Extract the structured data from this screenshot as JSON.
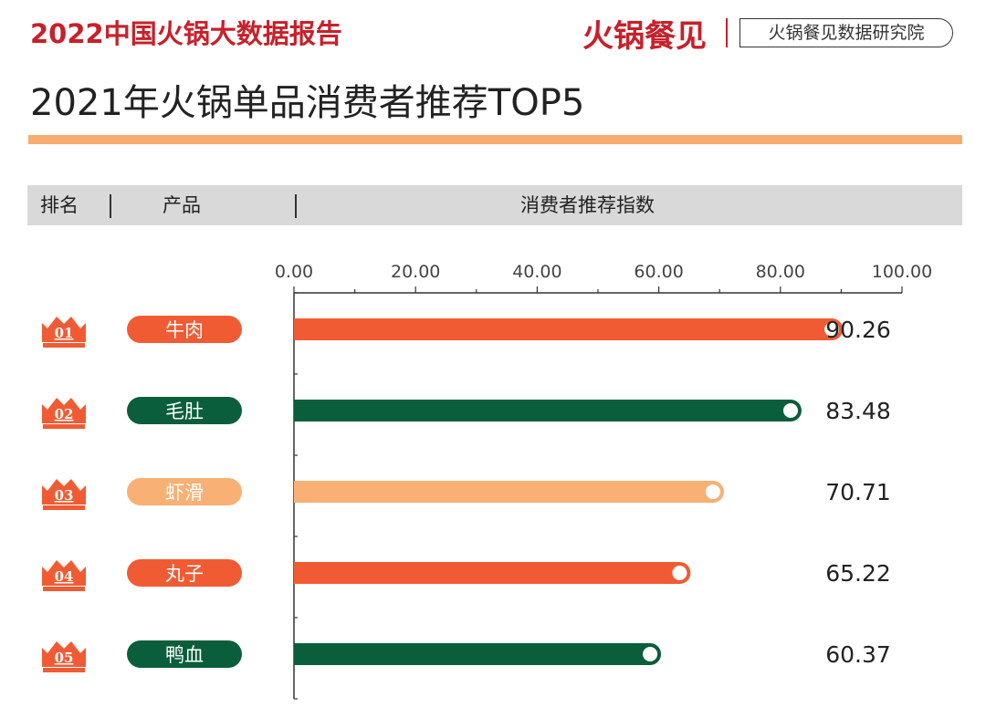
{
  "header": {
    "report_title": "2022中国火锅大数据报告",
    "brand": "火锅餐见",
    "institute": "火锅餐见数据研究院",
    "page_title": "2021年火锅单品消费者推荐TOP5"
  },
  "table_header": {
    "rank": "排名",
    "product": "产品",
    "index": "消费者推荐指数"
  },
  "colors": {
    "red": "#c8202a",
    "orange": "#f15b33",
    "green": "#0b5e3c",
    "peach": "#f9b074"
  },
  "chart_data": {
    "type": "bar",
    "orientation": "horizontal",
    "categories": [
      "牛肉",
      "毛肚",
      "虾滑",
      "丸子",
      "鸭血"
    ],
    "ranks": [
      "01",
      "02",
      "03",
      "04",
      "05"
    ],
    "values": [
      90.26,
      83.48,
      70.71,
      65.22,
      60.37
    ],
    "value_labels": [
      "90.26",
      "83.48",
      "70.71",
      "65.22",
      "60.37"
    ],
    "bar_colors": [
      "#f15b33",
      "#0b5e3c",
      "#f9b074",
      "#f15b33",
      "#0b5e3c"
    ],
    "xlim": [
      0,
      100
    ],
    "xticks": [
      "0.00",
      "20.00",
      "40.00",
      "60.00",
      "80.00",
      "100.00"
    ],
    "xtick_values": [
      0,
      20,
      40,
      60,
      80,
      100
    ],
    "xlabel": "消费者推荐指数",
    "legend": "none",
    "grid": false
  }
}
